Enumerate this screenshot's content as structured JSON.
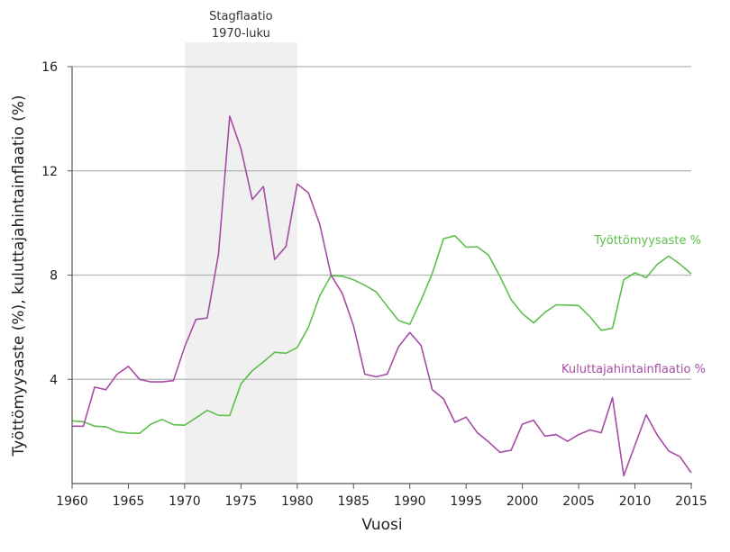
{
  "chart_data": {
    "type": "line",
    "xlabel": "Vuosi",
    "ylabel": "Työttömyysaste (%), kuluttajahintainflaatio (%)",
    "xlim": [
      1960,
      2015
    ],
    "ylim": [
      0,
      16
    ],
    "x_ticks": [
      1960,
      1965,
      1970,
      1975,
      1980,
      1985,
      1990,
      1995,
      2000,
      2005,
      2010,
      2015
    ],
    "y_ticks": [
      4,
      8,
      12,
      16
    ],
    "grid": "horizontal",
    "annotation": {
      "label_line1": "Stagflaatio",
      "label_line2": "1970-luku",
      "x_range": [
        1970,
        1980
      ],
      "color": "#f0f0f0"
    },
    "x": [
      1960,
      1961,
      1962,
      1963,
      1964,
      1965,
      1966,
      1967,
      1968,
      1969,
      1970,
      1971,
      1972,
      1973,
      1974,
      1975,
      1976,
      1977,
      1978,
      1979,
      1980,
      1981,
      1982,
      1983,
      1984,
      1985,
      1986,
      1987,
      1988,
      1989,
      1990,
      1991,
      1992,
      1993,
      1994,
      1995,
      1996,
      1997,
      1998,
      1999,
      2000,
      2001,
      2002,
      2003,
      2004,
      2005,
      2006,
      2007,
      2008,
      2009,
      2010,
      2011,
      2012,
      2013,
      2014,
      2015
    ],
    "series": [
      {
        "name": "Työttömyysaste %",
        "color": "#5cbf4a",
        "values": [
          2.41,
          2.37,
          2.2,
          2.18,
          1.99,
          1.94,
          1.93,
          2.28,
          2.46,
          2.26,
          2.24,
          2.52,
          2.81,
          2.62,
          2.61,
          3.83,
          4.33,
          4.67,
          5.04,
          5.0,
          5.22,
          6.0,
          7.21,
          7.98,
          7.96,
          7.82,
          7.61,
          7.36,
          6.8,
          6.26,
          6.11,
          7.04,
          8.07,
          9.4,
          9.51,
          9.07,
          9.09,
          8.76,
          7.95,
          7.06,
          6.52,
          6.17,
          6.57,
          6.86,
          6.85,
          6.83,
          6.4,
          5.88,
          5.96,
          7.82,
          8.09,
          7.9,
          8.42,
          8.73,
          8.42,
          8.05
        ]
      },
      {
        "name": "Kuluttajahintainflaatio %",
        "color": "#a64ca6",
        "values": [
          2.2,
          2.2,
          3.7,
          3.6,
          4.2,
          4.5,
          4.0,
          3.9,
          3.9,
          3.95,
          5.25,
          6.3,
          6.35,
          8.8,
          14.1,
          12.85,
          10.9,
          11.4,
          8.6,
          9.1,
          11.5,
          11.15,
          9.95,
          8.0,
          7.3,
          6.05,
          4.2,
          4.1,
          4.2,
          5.25,
          5.8,
          5.3,
          3.6,
          3.25,
          2.35,
          2.55,
          1.95,
          1.6,
          1.2,
          1.28,
          2.28,
          2.43,
          1.82,
          1.88,
          1.62,
          1.88,
          2.06,
          1.95,
          3.3,
          0.3,
          1.47,
          2.64,
          1.85,
          1.25,
          1.03,
          0.41
        ]
      }
    ]
  }
}
